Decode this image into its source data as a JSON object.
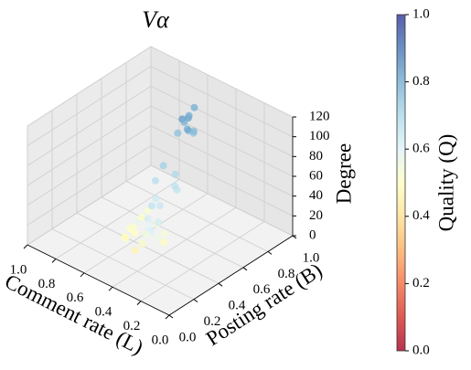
{
  "chart_data": {
    "type": "scatter3d",
    "title": "Vα",
    "xlabel": "Comment rate (L)",
    "ylabel": "Posting rate (B)",
    "zlabel": "Degree",
    "colorbar_label": "Quality (Q)",
    "x": [
      0.44,
      0.47,
      0.42,
      0.5,
      0.45,
      0.48,
      0.43,
      0.46,
      0.41,
      0.49,
      0.52,
      0.48,
      0.55,
      0.45,
      0.5,
      0.53,
      0.5,
      0.55,
      0.48,
      0.58,
      0.52,
      0.45,
      0.6,
      0.53,
      0.47,
      0.56,
      0.62,
      0.5,
      0.44,
      0.57,
      0.51,
      0.54,
      0.49,
      0.59,
      0.46,
      0.52,
      0.55,
      0.61,
      0.48,
      0.43
    ],
    "y": [
      0.66,
      0.7,
      0.64,
      0.68,
      0.72,
      0.62,
      0.69,
      0.65,
      0.67,
      0.71,
      0.55,
      0.6,
      0.52,
      0.58,
      0.62,
      0.5,
      0.4,
      0.38,
      0.45,
      0.35,
      0.42,
      0.48,
      0.33,
      0.44,
      0.39,
      0.47,
      0.36,
      0.5,
      0.41,
      0.43,
      0.37,
      0.46,
      0.34,
      0.4,
      0.44,
      0.32,
      0.49,
      0.41,
      0.36,
      0.45
    ],
    "z": [
      115,
      112,
      105,
      108,
      120,
      100,
      98,
      110,
      103,
      96,
      70,
      60,
      55,
      48,
      45,
      40,
      30,
      25,
      22,
      18,
      15,
      12,
      10,
      8,
      20,
      28,
      5,
      35,
      14,
      24,
      6,
      17,
      11,
      9,
      26,
      3,
      32,
      13,
      19,
      7
    ],
    "c": [
      0.82,
      0.8,
      0.78,
      0.84,
      0.8,
      0.76,
      0.75,
      0.79,
      0.77,
      0.81,
      0.72,
      0.7,
      0.68,
      0.66,
      0.67,
      0.64,
      0.62,
      0.58,
      0.55,
      0.5,
      0.6,
      0.53,
      0.48,
      0.57,
      0.61,
      0.52,
      0.49,
      0.65,
      0.56,
      0.51,
      0.47,
      0.59,
      0.54,
      0.5,
      0.63,
      0.46,
      0.66,
      0.52,
      0.55,
      0.49
    ],
    "xlim": [
      0,
      1
    ],
    "ylim": [
      0,
      1
    ],
    "zlim": [
      0,
      120
    ],
    "clim": [
      0,
      1
    ],
    "xticks": [
      {
        "value": 0,
        "label": "0.0"
      },
      {
        "value": 0.2,
        "label": "0.2"
      },
      {
        "value": 0.4,
        "label": "0.4"
      },
      {
        "value": 0.6,
        "label": "0.6"
      },
      {
        "value": 0.8,
        "label": "0.8"
      },
      {
        "value": 1,
        "label": "1.0"
      }
    ],
    "yticks": [
      {
        "value": 0,
        "label": "0.0"
      },
      {
        "value": 0.2,
        "label": "0.2"
      },
      {
        "value": 0.4,
        "label": "0.4"
      },
      {
        "value": 0.6,
        "label": "0.6"
      },
      {
        "value": 0.8,
        "label": "0.8"
      },
      {
        "value": 1,
        "label": "1.0"
      }
    ],
    "zticks": [
      0,
      20,
      40,
      60,
      80,
      100,
      120
    ],
    "cticks": [
      {
        "value": 0,
        "label": "0.0"
      },
      {
        "value": 0.2,
        "label": "0.2"
      },
      {
        "value": 0.4,
        "label": "0.4"
      },
      {
        "value": 0.6,
        "label": "0.6"
      },
      {
        "value": 0.8,
        "label": "0.8"
      },
      {
        "value": 1,
        "label": "1.0"
      }
    ],
    "grid": true
  }
}
